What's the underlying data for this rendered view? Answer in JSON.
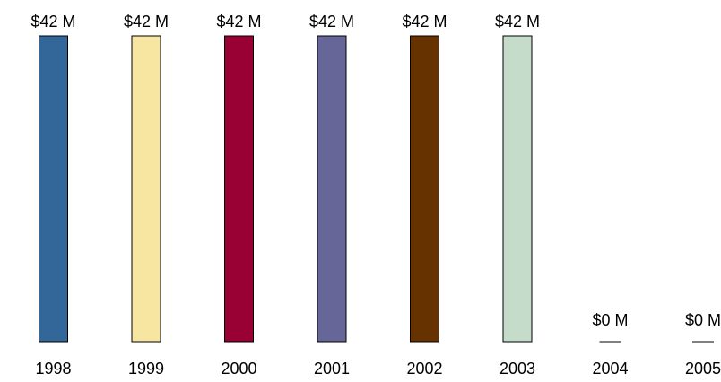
{
  "chart_data": {
    "type": "bar",
    "title": "",
    "xlabel": "",
    "ylabel": "",
    "ylim": [
      0,
      42
    ],
    "grid": false,
    "legend": "none",
    "categories": [
      "1998",
      "1999",
      "2000",
      "2001",
      "2002",
      "2003",
      "2004",
      "2005"
    ],
    "values": [
      42,
      42,
      42,
      42,
      42,
      42,
      0,
      0
    ],
    "value_labels": [
      "$42 M",
      "$42 M",
      "$42 M",
      "$42 M",
      "$42 M",
      "$42 M",
      "$0 M",
      "$0 M"
    ],
    "colors": [
      "#336699",
      "#f7e6a1",
      "#990033",
      "#666699",
      "#663300",
      "#c6dccb",
      "#ffffff",
      "#ffffff"
    ]
  }
}
